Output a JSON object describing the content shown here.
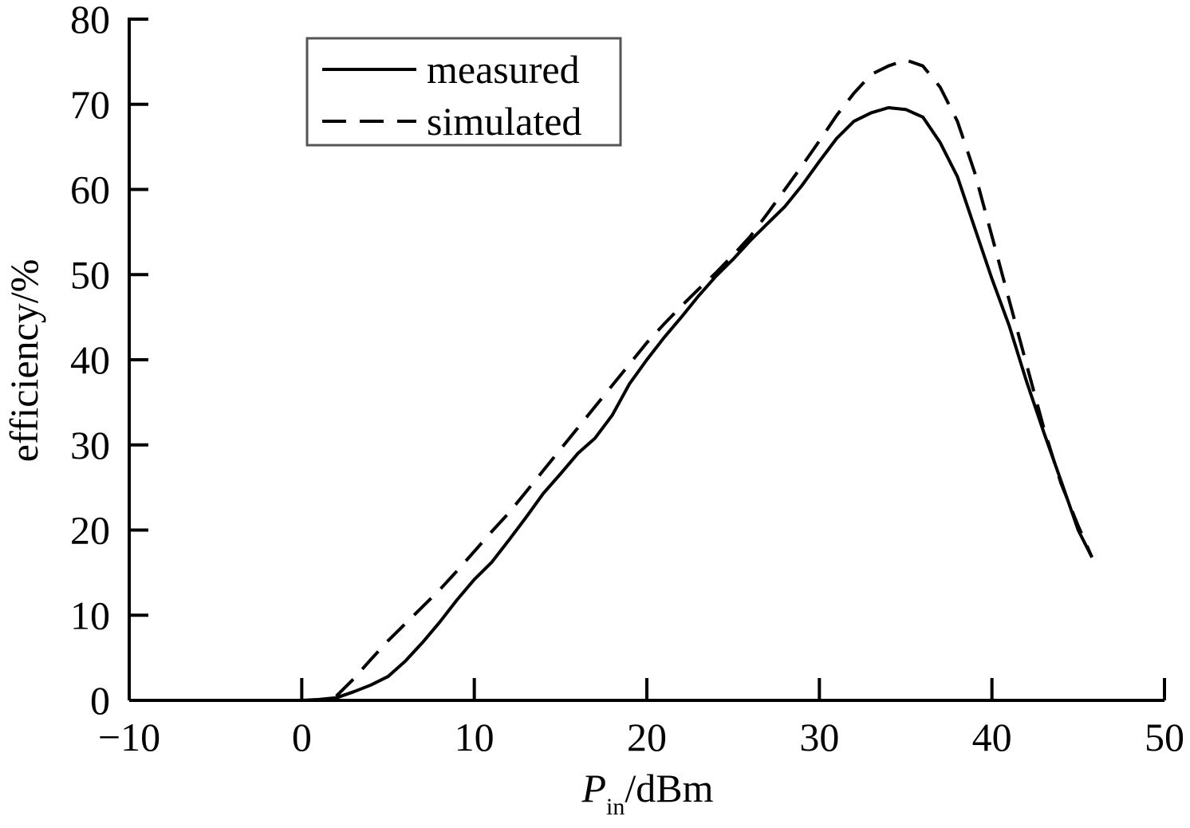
{
  "chart_data": {
    "type": "line",
    "title": "",
    "xlabel": {
      "main": "P",
      "sub": "in",
      "unit": "/dBm"
    },
    "ylabel": "efficiency/%",
    "xlim": [
      -10,
      50
    ],
    "ylim": [
      0,
      80
    ],
    "xticks": [
      -10,
      0,
      10,
      20,
      30,
      40,
      50
    ],
    "xtick_labels": [
      "−10",
      "0",
      "10",
      "20",
      "30",
      "40",
      "50"
    ],
    "yticks": [
      0,
      10,
      20,
      30,
      40,
      50,
      60,
      70,
      80
    ],
    "ytick_labels": [
      "0",
      "10",
      "20",
      "30",
      "40",
      "50",
      "60",
      "70",
      "80"
    ],
    "grid": false,
    "legend": {
      "position": "top-left"
    },
    "series": [
      {
        "name": "measured",
        "style": "solid",
        "color": "#000000",
        "points": [
          [
            0,
            0
          ],
          [
            1,
            0.1
          ],
          [
            2,
            0.3
          ],
          [
            3,
            1.0
          ],
          [
            4,
            1.8
          ],
          [
            5,
            2.8
          ],
          [
            6,
            4.6
          ],
          [
            7,
            6.8
          ],
          [
            8,
            9.2
          ],
          [
            9,
            11.8
          ],
          [
            10,
            14.2
          ],
          [
            11,
            16.2
          ],
          [
            12,
            18.8
          ],
          [
            13,
            21.5
          ],
          [
            14,
            24.3
          ],
          [
            15,
            26.6
          ],
          [
            16,
            29.0
          ],
          [
            17,
            30.8
          ],
          [
            18,
            33.5
          ],
          [
            19,
            37.2
          ],
          [
            20,
            40.0
          ],
          [
            21,
            42.6
          ],
          [
            22,
            45.0
          ],
          [
            23,
            47.5
          ],
          [
            24,
            49.8
          ],
          [
            25,
            51.8
          ],
          [
            26,
            54.0
          ],
          [
            27,
            56.0
          ],
          [
            28,
            58.0
          ],
          [
            29,
            60.5
          ],
          [
            30,
            63.3
          ],
          [
            31,
            66.0
          ],
          [
            32,
            68.0
          ],
          [
            33,
            69.0
          ],
          [
            34,
            69.6
          ],
          [
            35,
            69.4
          ],
          [
            36,
            68.5
          ],
          [
            37,
            65.5
          ],
          [
            38,
            61.5
          ],
          [
            39,
            55.5
          ],
          [
            40,
            49.5
          ],
          [
            41,
            44.0
          ],
          [
            42,
            37.5
          ],
          [
            43,
            31.5
          ],
          [
            44,
            25.8
          ],
          [
            45,
            20.0
          ],
          [
            45.8,
            16.8
          ]
        ]
      },
      {
        "name": "simulated",
        "style": "dashed",
        "color": "#000000",
        "points": [
          [
            2,
            0.5
          ],
          [
            3,
            2.5
          ],
          [
            4,
            4.8
          ],
          [
            5,
            7.0
          ],
          [
            6,
            9.0
          ],
          [
            7,
            11.0
          ],
          [
            8,
            13.0
          ],
          [
            9,
            15.2
          ],
          [
            10,
            17.5
          ],
          [
            11,
            19.8
          ],
          [
            12,
            22.0
          ],
          [
            13,
            24.5
          ],
          [
            14,
            27.0
          ],
          [
            15,
            29.5
          ],
          [
            16,
            32.0
          ],
          [
            17,
            34.5
          ],
          [
            18,
            37.0
          ],
          [
            19,
            39.5
          ],
          [
            20,
            42.0
          ],
          [
            21,
            44.2
          ],
          [
            22,
            46.3
          ],
          [
            23,
            48.3
          ],
          [
            24,
            50.2
          ],
          [
            25,
            52.3
          ],
          [
            26,
            54.5
          ],
          [
            27,
            57.2
          ],
          [
            28,
            60.0
          ],
          [
            29,
            62.8
          ],
          [
            30,
            65.7
          ],
          [
            31,
            68.7
          ],
          [
            32,
            71.3
          ],
          [
            33,
            73.5
          ],
          [
            34,
            74.5
          ],
          [
            35,
            75.2
          ],
          [
            36,
            74.5
          ],
          [
            37,
            72.0
          ],
          [
            38,
            68.0
          ],
          [
            39,
            62.0
          ],
          [
            40,
            54.5
          ],
          [
            41,
            47.0
          ],
          [
            42,
            39.5
          ],
          [
            43,
            32.0
          ],
          [
            44,
            25.5
          ],
          [
            45,
            20.5
          ],
          [
            45.8,
            16.8
          ]
        ]
      }
    ]
  }
}
